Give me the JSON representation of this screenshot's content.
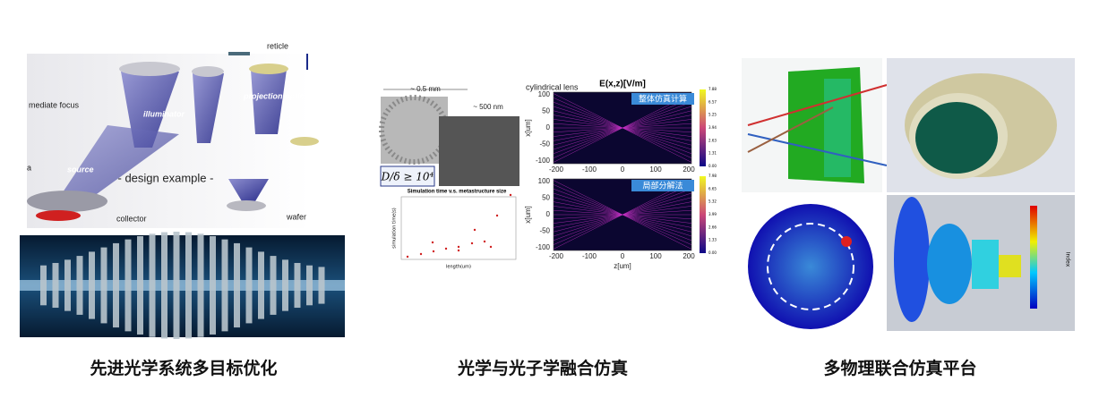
{
  "panels": [
    {
      "caption": "先进光学系统多目标优化",
      "labels": [
        "reticle",
        "mediate focus",
        "illuminator",
        "projection optics",
        "source",
        "- design example -",
        "collector",
        "wafer",
        "a"
      ]
    },
    {
      "caption": "光学与光子学融合仿真",
      "microscope": {
        "scale_large": "~ 0.5 mm",
        "scale_small": "~ 500 nm",
        "formula": "D/δ ≥ 10⁴"
      },
      "sim_plot": {
        "title": "Simulation time v.s. metastructure size",
        "ylabel": "simulation time(s)",
        "xlabel": "length(um)"
      },
      "field_plots": {
        "lens_label": "cylindrical lens",
        "title": "E(x,z)[V/m]",
        "ylabel": "x[um]",
        "xlabel": "z[um]",
        "yticks": [
          "100",
          "50",
          "0",
          "-50",
          "-100"
        ],
        "xticks": [
          "-200",
          "-100",
          "0",
          "100",
          "200"
        ],
        "plots": [
          {
            "tag": "整体仿真计算",
            "colorbar": [
              "7.88",
              "6.57",
              "5.25",
              "3.94",
              "2.63",
              "1.31",
              "0.00"
            ]
          },
          {
            "tag": "局部分解法",
            "colorbar": [
              "7.98",
              "6.65",
              "5.32",
              "3.99",
              "2.66",
              "1.33",
              "0.00"
            ]
          }
        ]
      }
    },
    {
      "caption": "多物理联合仿真平台",
      "colorbar_label": "Index"
    }
  ]
}
